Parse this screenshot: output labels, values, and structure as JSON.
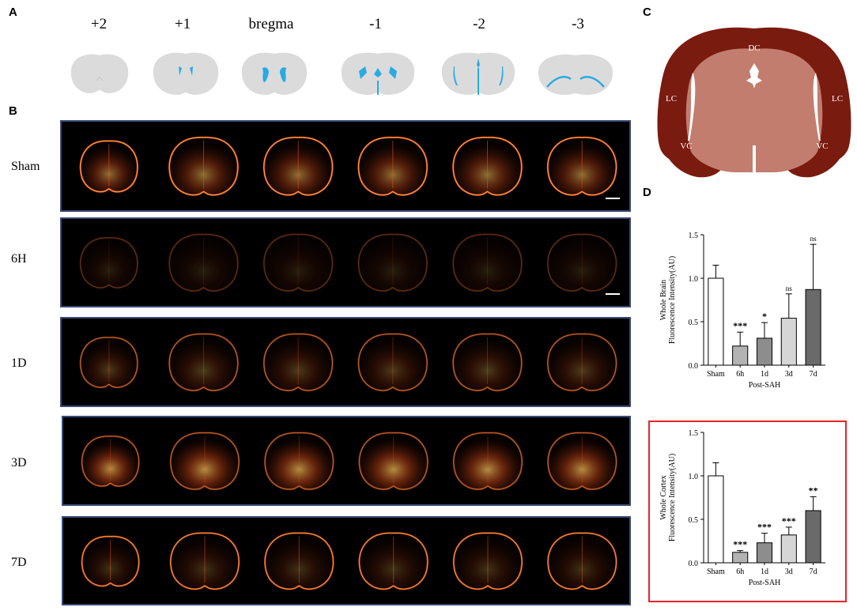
{
  "panels": {
    "a": "A",
    "b": "B",
    "c": "C",
    "d": "D"
  },
  "coordinates": [
    "+2",
    "+1",
    "bregma",
    "-1",
    "-2",
    "-3"
  ],
  "rows": [
    {
      "label": "Sham"
    },
    {
      "label": "6H"
    },
    {
      "label": "1D"
    },
    {
      "label": "3D"
    },
    {
      "label": "7D"
    }
  ],
  "schematic_c": {
    "regions": [
      "DC",
      "LC",
      "LC",
      "VC",
      "VC"
    ],
    "colors": {
      "cortex": "#7a1b10",
      "inner": "#c27d6e",
      "ventricle": "#ffffff"
    }
  },
  "colors": {
    "ref_brain": "#dcdbdb",
    "ref_ventricle": "#29abe2",
    "strip_border": "#3b4a78",
    "highlight_border": "#e8232a",
    "fluorescence_bright": "#ffcf60",
    "fluorescence_mid": "#e8501a",
    "fluorescence_dim": "#6a1808"
  },
  "chart_data": [
    {
      "type": "bar",
      "categories": [
        "Sham",
        "6h",
        "1d",
        "3d",
        "7d"
      ],
      "values": [
        1.0,
        0.22,
        0.31,
        0.54,
        0.87
      ],
      "error": [
        0.15,
        0.16,
        0.18,
        0.28,
        0.52
      ],
      "significance": [
        "",
        "***",
        "*",
        "ns",
        "ns"
      ],
      "fills": [
        "#ffffff",
        "#b3b3b3",
        "#8d8d8d",
        "#d6d6d6",
        "#6a6a6a"
      ],
      "ylabel_line1": "Whole Brain",
      "ylabel_line2": "Fluorescence Intensity(AU)",
      "xlabel": "Post-SAH",
      "ylim": [
        0,
        1.5
      ],
      "yticks": [
        "0.0",
        "0.5",
        "1.0",
        "1.5"
      ]
    },
    {
      "type": "bar",
      "categories": [
        "Sham",
        "6h",
        "1d",
        "3d",
        "7d"
      ],
      "values": [
        1.0,
        0.12,
        0.23,
        0.32,
        0.6
      ],
      "error": [
        0.15,
        0.02,
        0.11,
        0.09,
        0.16
      ],
      "significance": [
        "",
        "***",
        "***",
        "***",
        "**"
      ],
      "fills": [
        "#ffffff",
        "#b3b3b3",
        "#8d8d8d",
        "#d6d6d6",
        "#6a6a6a"
      ],
      "ylabel_line1": "Whole Cortex",
      "ylabel_line2": "Fluorescence Intensity(AU)",
      "xlabel": "Post-SAH",
      "ylim": [
        0,
        1.5
      ],
      "yticks": [
        "0.0",
        "0.5",
        "1.0",
        "1.5"
      ]
    }
  ]
}
